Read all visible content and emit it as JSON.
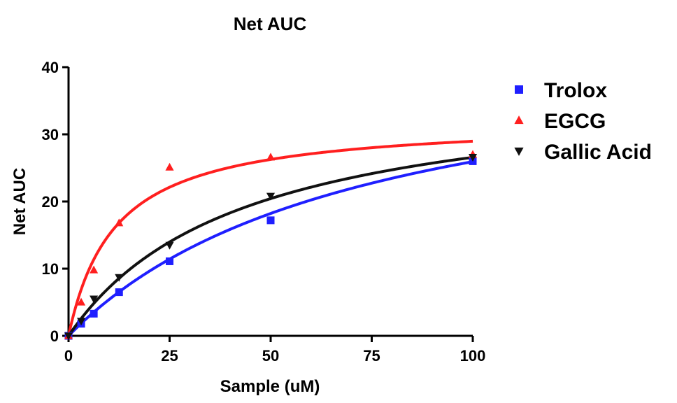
{
  "chart_data": {
    "type": "scatter",
    "title": "Net AUC",
    "xlabel": "Sample (uM)",
    "ylabel": "Net AUC",
    "xlim": [
      0,
      100
    ],
    "ylim": [
      0,
      40
    ],
    "xticks": [
      "0",
      "25",
      "50",
      "75",
      "100"
    ],
    "yticks": [
      "0",
      "10",
      "20",
      "30",
      "40"
    ],
    "grid": false,
    "legend_position": "right",
    "series": [
      {
        "name": "Trolox",
        "color": "#1f1fff",
        "marker": "square",
        "x": [
          0,
          3.125,
          6.25,
          12.5,
          25,
          50,
          100
        ],
        "y": [
          0,
          1.8,
          3.3,
          6.5,
          11.1,
          17.2,
          26.0
        ],
        "fit": {
          "model": "hyperbola",
          "bmax": 45,
          "kd": 73.5
        }
      },
      {
        "name": "EGCG",
        "color": "#ff1f1f",
        "marker": "triangle-up",
        "x": [
          0,
          3.125,
          6.25,
          12.5,
          25,
          50,
          100
        ],
        "y": [
          0,
          5.0,
          9.8,
          16.8,
          25.1,
          26.6,
          27.0
        ],
        "fit": {
          "model": "hyperbola",
          "bmax": 32.3,
          "kd": 11.5
        }
      },
      {
        "name": "Gallic Acid",
        "color": "#111111",
        "marker": "triangle-down",
        "x": [
          0,
          3.125,
          6.25,
          12.5,
          25,
          50,
          100
        ],
        "y": [
          0,
          2.2,
          5.5,
          8.7,
          13.5,
          20.8,
          26.6
        ],
        "fit": {
          "model": "hyperbola",
          "bmax": 38,
          "kd": 43
        }
      }
    ]
  }
}
